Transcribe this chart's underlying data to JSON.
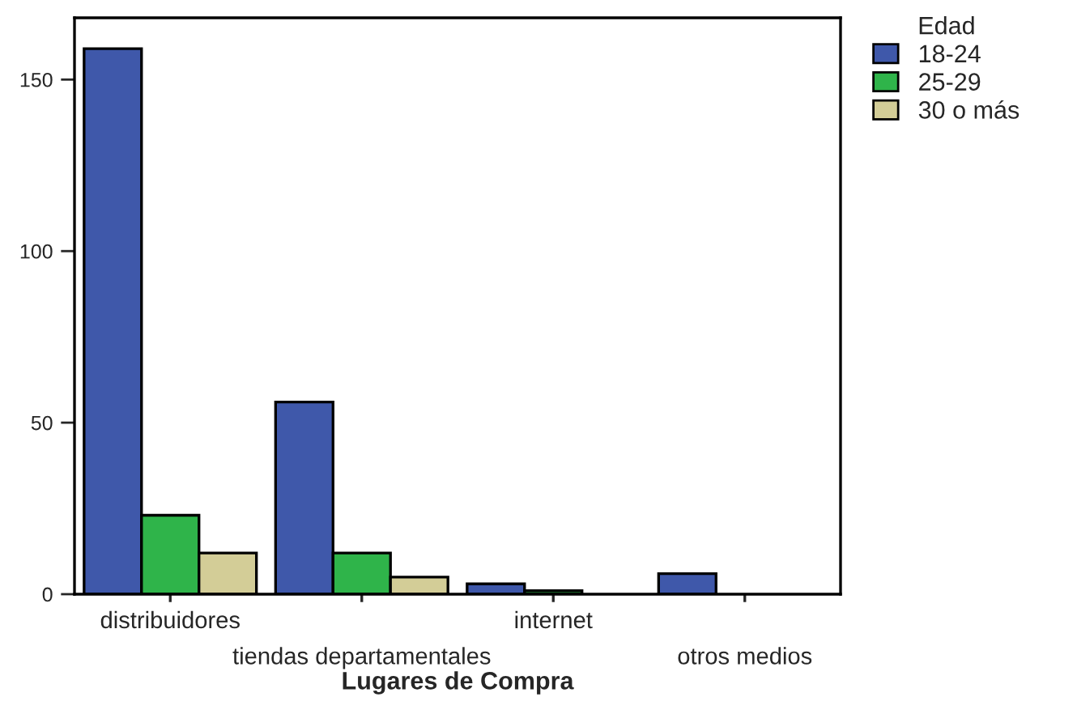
{
  "chart_data": {
    "type": "bar",
    "xlabel": "Lugares de Compra",
    "legend_title": "Edad",
    "categories": [
      "distribuidores",
      "tiendas departamentales",
      "internet",
      "otros medios"
    ],
    "series": [
      {
        "name": "18-24",
        "color": "#3f58aa",
        "values": [
          159,
          56,
          3,
          6
        ]
      },
      {
        "name": "25-29",
        "color": "#2fb44a",
        "values": [
          23,
          12,
          1,
          0
        ]
      },
      {
        "name": "30 o más",
        "color": "#d3cd97",
        "values": [
          12,
          5,
          0,
          0
        ]
      }
    ],
    "ylim": [
      0,
      168
    ],
    "yticks": [
      0,
      50,
      100,
      150
    ],
    "grid": false,
    "legend": "top right"
  }
}
